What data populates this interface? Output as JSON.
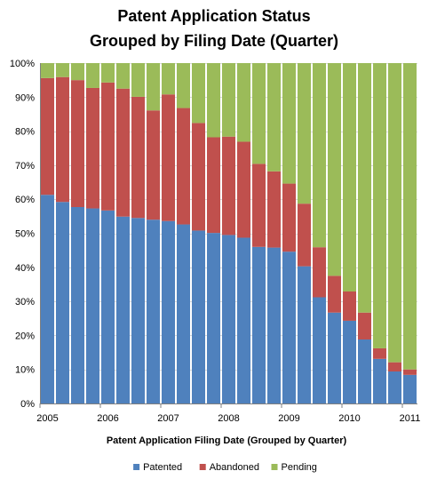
{
  "chart_data": {
    "type": "bar",
    "stacked": true,
    "title_lines": [
      "Patent Application Status",
      "Grouped by Filing Date (Quarter)"
    ],
    "xlabel": "Patent Application Filing Date (Grouped by Quarter)",
    "ylabel": "",
    "ylim": [
      0,
      100
    ],
    "y_ticks": [
      "0%",
      "10%",
      "20%",
      "30%",
      "40%",
      "50%",
      "60%",
      "70%",
      "80%",
      "90%",
      "100%"
    ],
    "x_ticks": [
      {
        "label": "2005",
        "at_quarter": 0
      },
      {
        "label": "2006",
        "at_quarter": 4
      },
      {
        "label": "2007",
        "at_quarter": 8
      },
      {
        "label": "2008",
        "at_quarter": 12
      },
      {
        "label": "2009",
        "at_quarter": 16
      },
      {
        "label": "2010",
        "at_quarter": 20
      },
      {
        "label": "2011",
        "at_quarter": 24
      }
    ],
    "quarters": 25,
    "series": [
      {
        "name": "Patented",
        "color": "#4F81BD",
        "values": [
          61.3,
          59.2,
          57.7,
          57.3,
          56.7,
          54.9,
          54.5,
          54.0,
          53.6,
          52.6,
          50.8,
          50.1,
          49.5,
          48.7,
          46.0,
          45.8,
          44.6,
          40.3,
          31.2,
          26.7,
          24.3,
          18.8,
          13.1,
          9.4,
          8.4
        ]
      },
      {
        "name": "Abandoned",
        "color": "#C0504D",
        "values": [
          34.3,
          36.7,
          37.3,
          35.4,
          37.6,
          37.6,
          35.6,
          32.1,
          37.2,
          34.2,
          31.6,
          28.1,
          28.9,
          28.2,
          24.4,
          22.4,
          20.0,
          18.4,
          14.7,
          10.8,
          8.6,
          7.9,
          3.1,
          2.7,
          1.6
        ]
      },
      {
        "name": "Pending",
        "color": "#9BBB59",
        "values": [
          4.4,
          4.1,
          5.0,
          7.3,
          5.7,
          7.5,
          9.9,
          13.9,
          9.2,
          13.2,
          17.6,
          21.8,
          21.6,
          23.1,
          29.6,
          31.8,
          35.4,
          41.3,
          54.1,
          62.5,
          67.1,
          73.3,
          83.8,
          87.9,
          90.0
        ]
      }
    ],
    "grid": true,
    "legend_position": "bottom"
  },
  "colors": {
    "grid": "#D9D9D9",
    "axis": "#808080",
    "background": "#FFFFFF"
  }
}
